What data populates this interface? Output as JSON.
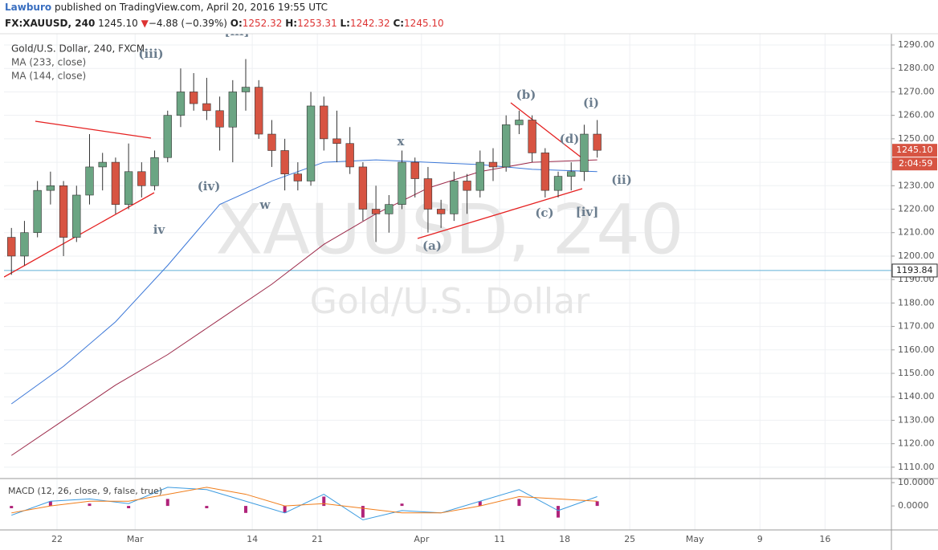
{
  "header": {
    "publisher": "Lawburo",
    "published_text": "published on TradingView.com, April 20, 2016 19:55 UTC",
    "symbol": "FX:XAUUSD, 240",
    "last": "1245.10",
    "arrow": "▼",
    "change": "−4.88 (−0.39%)",
    "o_label": "O:",
    "open": "1252.32",
    "h_label": "H:",
    "high": "1253.31",
    "l_label": "L:",
    "low": "1242.32",
    "c_label": "C:",
    "close": "1245.10"
  },
  "chart_data": [
    {
      "type": "candlestick",
      "legend": [
        "Gold/U.S. Dollar, 240, FXCM",
        "MA (233, close)",
        "MA (144, close)"
      ],
      "watermark": "XAUUSD, 240",
      "watermark_sub": "Gold/U.S. Dollar",
      "xlim": [
        -0.07,
        68.1
      ],
      "xticks": [
        {
          "value": 4,
          "label": "22"
        },
        {
          "value": 10,
          "label": "Mar"
        },
        {
          "value": 19,
          "label": "14"
        },
        {
          "value": 24,
          "label": "21"
        },
        {
          "value": 32,
          "label": "Apr"
        },
        {
          "value": 38,
          "label": "11"
        },
        {
          "value": 43,
          "label": "18"
        },
        {
          "value": 48,
          "label": "25"
        },
        {
          "value": 53,
          "label": "May"
        },
        {
          "value": 58,
          "label": "9"
        },
        {
          "value": 63,
          "label": "16"
        }
      ],
      "ylim": [
        1105.5,
        1294.8
      ],
      "yticks": [
        {
          "value": 1110,
          "label": "1110.00"
        },
        {
          "value": 1120,
          "label": "1120.00"
        },
        {
          "value": 1130,
          "label": "1130.00"
        },
        {
          "value": 1140,
          "label": "1140.00"
        },
        {
          "value": 1150,
          "label": "1150.00"
        },
        {
          "value": 1160,
          "label": "1160.00"
        },
        {
          "value": 1170,
          "label": "1170.00"
        },
        {
          "value": 1180,
          "label": "1180.00"
        },
        {
          "value": 1190,
          "label": "1190.00"
        },
        {
          "value": 1200,
          "label": "1200.00"
        },
        {
          "value": 1210,
          "label": "1210.00"
        },
        {
          "value": 1220,
          "label": "1220.00"
        },
        {
          "value": 1230,
          "label": "1230.00"
        },
        {
          "value": 1240,
          "label": "1240.00"
        },
        {
          "value": 1250,
          "label": "1250.00"
        },
        {
          "value": 1260,
          "label": "1260.00"
        },
        {
          "value": 1270,
          "label": "1270.00"
        },
        {
          "value": 1280,
          "label": "1280.00"
        },
        {
          "value": 1290,
          "label": "1290.00"
        }
      ],
      "grid": true,
      "candles": {
        "name": "XAUUSD",
        "up_color": "#6ba583",
        "down_color": "#d75442",
        "x": [
          0,
          1,
          2,
          3,
          4,
          5,
          6,
          7,
          8,
          9,
          10,
          11,
          12,
          13,
          14,
          15,
          16,
          17,
          18,
          19,
          20,
          21,
          22,
          23,
          24,
          25,
          26,
          27,
          28,
          29,
          30,
          31,
          32,
          33,
          34,
          35,
          36,
          37,
          38,
          39,
          40,
          41,
          42,
          43,
          44,
          45
        ],
        "open": [
          1208,
          1200,
          1210,
          1228,
          1230,
          1208,
          1226,
          1238,
          1240,
          1222,
          1236,
          1230,
          1242,
          1260,
          1270,
          1265,
          1262,
          1255,
          1270,
          1272,
          1252,
          1245,
          1235,
          1232,
          1264,
          1250,
          1248,
          1238,
          1220,
          1218,
          1222,
          1240,
          1233,
          1220,
          1218,
          1232,
          1228,
          1240,
          1238,
          1256,
          1258,
          1244,
          1228,
          1234,
          1236,
          1252
        ],
        "high": [
          1212,
          1215,
          1232,
          1236,
          1232,
          1230,
          1252,
          1244,
          1242,
          1248,
          1240,
          1245,
          1262,
          1280,
          1278,
          1276,
          1268,
          1275,
          1284,
          1275,
          1258,
          1250,
          1240,
          1270,
          1268,
          1262,
          1255,
          1240,
          1230,
          1226,
          1245,
          1242,
          1238,
          1224,
          1236,
          1235,
          1245,
          1246,
          1260,
          1262,
          1260,
          1246,
          1236,
          1240,
          1256,
          1258
        ],
        "low": [
          1192,
          1196,
          1208,
          1222,
          1200,
          1206,
          1222,
          1228,
          1218,
          1220,
          1225,
          1228,
          1240,
          1255,
          1262,
          1258,
          1245,
          1240,
          1262,
          1250,
          1238,
          1228,
          1228,
          1230,
          1245,
          1240,
          1235,
          1215,
          1206,
          1210,
          1220,
          1225,
          1210,
          1212,
          1215,
          1218,
          1225,
          1232,
          1236,
          1252,
          1240,
          1225,
          1225,
          1228,
          1232,
          1242
        ],
        "close": [
          1200,
          1210,
          1228,
          1230,
          1208,
          1226,
          1238,
          1240,
          1222,
          1236,
          1230,
          1242,
          1260,
          1270,
          1265,
          1262,
          1255,
          1270,
          1272,
          1252,
          1245,
          1235,
          1232,
          1264,
          1250,
          1248,
          1238,
          1220,
          1218,
          1222,
          1240,
          1233,
          1220,
          1218,
          1232,
          1228,
          1240,
          1238,
          1256,
          1258,
          1244,
          1228,
          1234,
          1236,
          1252,
          1245.1
        ]
      },
      "series": [
        {
          "name": "MA (233, close)",
          "color": "#3c78d8",
          "x": [
            0,
            4,
            8,
            12,
            16,
            20,
            24,
            28,
            32,
            36,
            40,
            45
          ],
          "values": [
            1137,
            1153,
            1172,
            1196,
            1222,
            1232,
            1240,
            1241,
            1240,
            1239,
            1237,
            1236
          ]
        },
        {
          "name": "MA (144, close)",
          "color": "#9c2a4a",
          "x": [
            0,
            4,
            8,
            12,
            16,
            20,
            24,
            28,
            32,
            36,
            40,
            45
          ],
          "values": [
            1115,
            1130,
            1145,
            1158,
            1173,
            1188,
            1205,
            1218,
            1229,
            1236,
            1240,
            1241
          ]
        }
      ],
      "hline": {
        "value": 1193.84,
        "label": "1193.84",
        "color": "#5fb0d8"
      },
      "last_price": {
        "value": 1245.1,
        "label": "1245.10",
        "countdown": "2:04:59",
        "color": "#d75442"
      },
      "annotations": [
        "(iii)",
        "[iii]",
        "(iv)",
        "iv",
        "w",
        "x",
        "(a)",
        "(b)",
        "(c)",
        "(d)",
        "[iv]",
        "(i)",
        "(ii)"
      ]
    },
    {
      "type": "macd",
      "title": "MACD (12, 26, close, 9, false, true)",
      "ylim": [
        -10.3,
        11.4
      ],
      "yticks": [
        {
          "value": 10,
          "label": "10.0000"
        },
        {
          "value": 0,
          "label": "0.0000"
        }
      ],
      "x": [
        0,
        3,
        6,
        9,
        12,
        15,
        18,
        21,
        24,
        27,
        30,
        33,
        36,
        39,
        42,
        45
      ],
      "series": [
        {
          "name": "MACD",
          "color": "#3c9be0",
          "values": [
            -4,
            2,
            3,
            1,
            8,
            7,
            2,
            -3,
            5,
            -6,
            -2,
            -3,
            2,
            7,
            -2,
            4
          ]
        },
        {
          "name": "Signal",
          "color": "#f07d1a",
          "values": [
            -3,
            0,
            2,
            2,
            5,
            8,
            5,
            0,
            1,
            -1,
            -3,
            -3,
            0,
            4,
            3,
            2
          ]
        }
      ],
      "histogram": {
        "name": "Histogram",
        "color": "#b0237a",
        "values": [
          -1,
          2,
          1,
          -1,
          3,
          -1,
          -3,
          -3,
          4,
          -5,
          1,
          0,
          2,
          3,
          -5,
          2
        ]
      }
    }
  ]
}
